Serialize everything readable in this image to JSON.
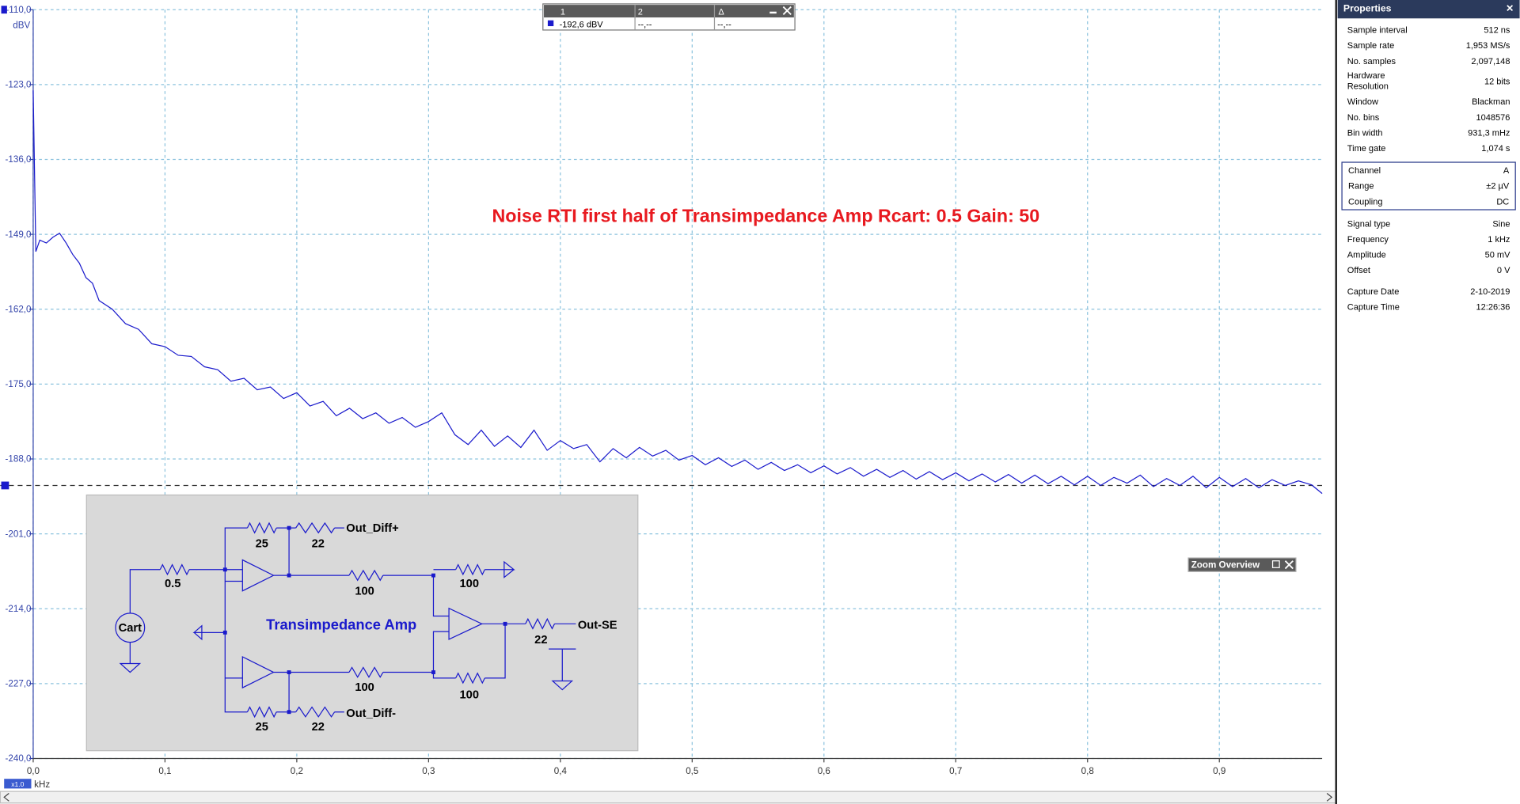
{
  "chart_data": {
    "type": "line",
    "title": "Noise RTI first half of Transimpedance Amp  Rcart: 0.5 Gain: 50",
    "title_color": "#e8191f",
    "x_unit": "kHz",
    "y_unit": "dBV",
    "x": [
      0,
      0.002,
      0.005,
      0.01,
      0.015,
      0.02,
      0.025,
      0.03,
      0.035,
      0.04,
      0.045,
      0.05,
      0.06,
      0.07,
      0.08,
      0.09,
      0.1,
      0.11,
      0.12,
      0.13,
      0.14,
      0.15,
      0.16,
      0.17,
      0.18,
      0.19,
      0.2,
      0.21,
      0.22,
      0.23,
      0.24,
      0.25,
      0.26,
      0.27,
      0.28,
      0.29,
      0.3,
      0.31,
      0.32,
      0.33,
      0.34,
      0.35,
      0.36,
      0.37,
      0.38,
      0.39,
      0.4,
      0.41,
      0.42,
      0.43,
      0.44,
      0.45,
      0.46,
      0.47,
      0.48,
      0.49,
      0.5,
      0.51,
      0.52,
      0.53,
      0.54,
      0.55,
      0.56,
      0.57,
      0.58,
      0.59,
      0.6,
      0.61,
      0.62,
      0.63,
      0.64,
      0.65,
      0.66,
      0.67,
      0.68,
      0.69,
      0.7,
      0.71,
      0.72,
      0.73,
      0.74,
      0.75,
      0.76,
      0.77,
      0.78,
      0.79,
      0.8,
      0.81,
      0.82,
      0.83,
      0.84,
      0.85,
      0.86,
      0.87,
      0.88,
      0.89,
      0.9,
      0.91,
      0.92,
      0.93,
      0.94,
      0.95,
      0.96,
      0.97,
      0.978
    ],
    "series": [
      {
        "color": "#1a1acc",
        "values": [
          -124,
          -152,
          -150,
          -150.5,
          -149.5,
          -148.8,
          -150.5,
          -152.5,
          -154,
          -156.5,
          -157.5,
          -160.5,
          -162,
          -164.5,
          -165.5,
          -168,
          -168.5,
          -170,
          -170.2,
          -172,
          -172.5,
          -174.5,
          -174,
          -176,
          -175.5,
          -177.5,
          -176.5,
          -178.8,
          -178,
          -180.5,
          -179.2,
          -181,
          -180,
          -181.8,
          -180.8,
          -182.5,
          -181.5,
          -180,
          -183.8,
          -185.5,
          -183,
          -185.8,
          -184,
          -186,
          -183,
          -186.5,
          -184.8,
          -186.2,
          -185.5,
          -188.5,
          -186.2,
          -187.8,
          -186,
          -187.5,
          -186.5,
          -188.2,
          -187.4,
          -189,
          -187.8,
          -189.3,
          -188.2,
          -189.8,
          -188.6,
          -190,
          -189,
          -190.4,
          -189.2,
          -190.6,
          -189.5,
          -191,
          -189.8,
          -191.2,
          -190,
          -191.5,
          -190.2,
          -191.6,
          -190.4,
          -191.8,
          -190.6,
          -192,
          -190.7,
          -192.2,
          -190.8,
          -192.3,
          -191,
          -192.5,
          -191,
          -192.6,
          -191.2,
          -192.2,
          -190.8,
          -192.8,
          -191.4,
          -192.6,
          -191,
          -193,
          -191.2,
          -192.8,
          -191.4,
          -193,
          -191.6,
          -192.6,
          -191.8,
          -192.5,
          -194
        ]
      }
    ],
    "xlim": [
      0,
      0.978
    ],
    "ylim": [
      -240,
      -110
    ],
    "xticks": [
      {
        "value": 0,
        "label": "0,0"
      },
      {
        "value": 0.1,
        "label": "0,1"
      },
      {
        "value": 0.2,
        "label": "0,2"
      },
      {
        "value": 0.3,
        "label": "0,3"
      },
      {
        "value": 0.4,
        "label": "0,4"
      },
      {
        "value": 0.5,
        "label": "0,5"
      },
      {
        "value": 0.6,
        "label": "0,6"
      },
      {
        "value": 0.7,
        "label": "0,7"
      },
      {
        "value": 0.8,
        "label": "0,8"
      },
      {
        "value": 0.9,
        "label": "0,9"
      }
    ],
    "yticks": [
      {
        "value": -110,
        "label": "-110,0"
      },
      {
        "value": -123,
        "label": "-123,0"
      },
      {
        "value": -136,
        "label": "-136,0"
      },
      {
        "value": -149,
        "label": "-149,0"
      },
      {
        "value": -162,
        "label": "-162,0"
      },
      {
        "value": -175,
        "label": "-175,0"
      },
      {
        "value": -188,
        "label": "-188,0"
      },
      {
        "value": -201,
        "label": "-201,0"
      },
      {
        "value": -214,
        "label": "-214,0"
      },
      {
        "value": -227,
        "label": "-227,0"
      },
      {
        "value": -240,
        "label": "-240,0"
      }
    ],
    "grid": true,
    "cursor": -192.6
  },
  "measurement": {
    "headers": [
      "1",
      "2",
      "Δ"
    ],
    "rows": [
      [
        "-192,6 dBV",
        "--,--",
        "--,--"
      ]
    ]
  },
  "zoom_overview": {
    "title": "Zoom Overview"
  },
  "zoom_button": "x1.0",
  "schematic": {
    "title": "Transimpedance Amp",
    "source": "Cart",
    "resistors": [
      "0.5",
      "25",
      "22",
      "100",
      "100",
      "100",
      "100",
      "22",
      "25",
      "22"
    ],
    "outputs": [
      "Out_Diff+",
      "Out-SE",
      "Out_Diff-"
    ]
  },
  "properties": {
    "title": "Properties",
    "groups": [
      [
        [
          "Sample interval",
          "512 ns"
        ],
        [
          "Sample rate",
          "1,953 MS/s"
        ],
        [
          "No. samples",
          "2,097,148"
        ],
        [
          "Hardware Resolution",
          "12 bits"
        ],
        [
          "Window",
          "Blackman"
        ],
        [
          "No. bins",
          "1048576"
        ],
        [
          "Bin width",
          "931,3 mHz"
        ],
        [
          "Time gate",
          "1,074 s"
        ]
      ],
      [
        [
          "Channel",
          "A"
        ],
        [
          "Range",
          "±2 µV"
        ],
        [
          "Coupling",
          "DC"
        ]
      ],
      [
        [
          "Signal type",
          "Sine"
        ],
        [
          "Frequency",
          "1 kHz"
        ],
        [
          "Amplitude",
          "50 mV"
        ],
        [
          "Offset",
          "0 V"
        ]
      ],
      [
        [
          "Capture Date",
          "2-10-2019"
        ],
        [
          "Capture Time",
          "12:26:36"
        ]
      ]
    ]
  }
}
